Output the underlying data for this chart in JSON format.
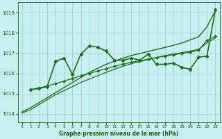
{
  "title": "Graphe pression niveau de la mer (hPa)",
  "background_color": "#c8f0f0",
  "grid_color": "#99cccc",
  "text_color": "#1a5c1a",
  "xlim": [
    -0.5,
    23.5
  ],
  "ylim": [
    1013.6,
    1019.5
  ],
  "yticks": [
    1014,
    1015,
    1016,
    1017,
    1018,
    1019
  ],
  "xticks": [
    0,
    1,
    2,
    3,
    4,
    5,
    6,
    7,
    8,
    9,
    10,
    11,
    12,
    13,
    14,
    15,
    16,
    17,
    18,
    19,
    20,
    21,
    22,
    23
  ],
  "series": [
    {
      "x": [
        0,
        1,
        2,
        3,
        4,
        5,
        6,
        7,
        8,
        9,
        10,
        11,
        12,
        13,
        14,
        15,
        16,
        17,
        18,
        19,
        20,
        21,
        22,
        23
      ],
      "y": [
        1014.1,
        1014.3,
        1014.55,
        1014.8,
        1015.05,
        1015.3,
        1015.55,
        1015.8,
        1016.05,
        1016.25,
        1016.45,
        1016.6,
        1016.75,
        1016.88,
        1016.98,
        1017.08,
        1017.18,
        1017.28,
        1017.38,
        1017.5,
        1017.65,
        1017.8,
        1018.3,
        1019.1
      ],
      "color": "#1a6e1a",
      "linewidth": 1.0,
      "marker": null,
      "linestyle": "-"
    },
    {
      "x": [
        0,
        1,
        2,
        3,
        4,
        5,
        6,
        7,
        8,
        9,
        10,
        11,
        12,
        13,
        14,
        15,
        16,
        17,
        18,
        19,
        20,
        21,
        22,
        23
      ],
      "y": [
        1014.05,
        1014.2,
        1014.45,
        1014.7,
        1014.95,
        1015.15,
        1015.35,
        1015.55,
        1015.72,
        1015.88,
        1016.05,
        1016.2,
        1016.35,
        1016.48,
        1016.58,
        1016.68,
        1016.78,
        1016.88,
        1016.95,
        1017.02,
        1017.1,
        1017.18,
        1017.5,
        1017.75
      ],
      "color": "#1a6e1a",
      "linewidth": 0.9,
      "marker": null,
      "linestyle": "-"
    },
    {
      "x": [
        1,
        2,
        3,
        4,
        5,
        6,
        7,
        8,
        9,
        10,
        11,
        12,
        13,
        14,
        15,
        16,
        17,
        18,
        19,
        20,
        21,
        22,
        23
      ],
      "y": [
        1015.2,
        1015.25,
        1015.35,
        1016.6,
        1016.75,
        1015.95,
        1016.95,
        1017.35,
        1017.3,
        1017.1,
        1016.65,
        1016.65,
        1016.75,
        1016.65,
        1016.95,
        1016.45,
        1016.45,
        1016.5,
        1016.3,
        1016.2,
        1016.8,
        1016.85,
        1019.15
      ],
      "color": "#1a6e1a",
      "linewidth": 1.2,
      "marker": "D",
      "markersize": 2.5,
      "linestyle": "-"
    },
    {
      "x": [
        1,
        2,
        3,
        4,
        5,
        6,
        7,
        8,
        9,
        10,
        11,
        12,
        13,
        14,
        15,
        16,
        17,
        18,
        19,
        20,
        21,
        22,
        23
      ],
      "y": [
        1015.2,
        1015.28,
        1015.38,
        1015.5,
        1015.62,
        1015.75,
        1015.88,
        1016.0,
        1016.12,
        1016.22,
        1016.35,
        1016.45,
        1016.55,
        1016.62,
        1016.7,
        1016.78,
        1016.85,
        1016.92,
        1016.98,
        1017.05,
        1017.15,
        1017.62,
        1017.82
      ],
      "color": "#1a6e1a",
      "linewidth": 0.9,
      "marker": "D",
      "markersize": 2.0,
      "linestyle": "-"
    }
  ]
}
